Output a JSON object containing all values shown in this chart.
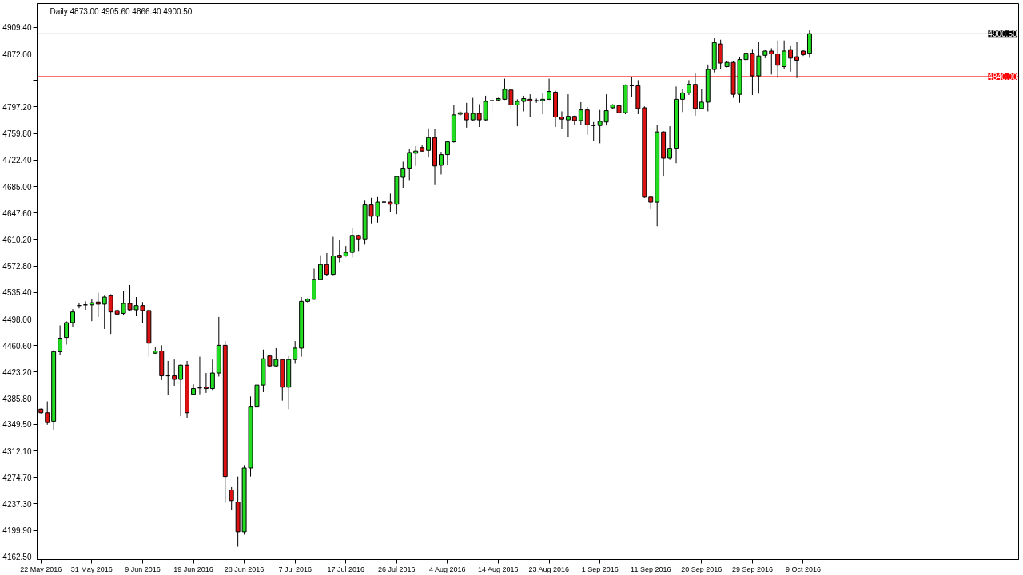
{
  "chart_data": {
    "type": "candlestick",
    "title": "Daily 4873.00 4905.60 4866.40 4900.50",
    "categories": [
      "22 May 2016",
      null,
      null,
      null,
      null,
      null,
      null,
      null,
      "31 May 2016",
      null,
      null,
      null,
      null,
      null,
      null,
      null,
      "9 Jun 2016",
      null,
      null,
      null,
      null,
      null,
      null,
      null,
      "19 Jun 2016",
      null,
      null,
      null,
      null,
      null,
      null,
      null,
      "28 Jun 2016",
      null,
      null,
      null,
      null,
      null,
      null,
      null,
      "7 Jul 2016",
      null,
      null,
      null,
      null,
      null,
      null,
      null,
      "17 Jul 2016",
      null,
      null,
      null,
      null,
      null,
      null,
      null,
      "26 Jul 2016",
      null,
      null,
      null,
      null,
      null,
      null,
      null,
      "4 Aug 2016",
      null,
      null,
      null,
      null,
      null,
      null,
      null,
      "14 Aug 2016",
      null,
      null,
      null,
      null,
      null,
      null,
      null,
      "23 Aug 2016",
      null,
      null,
      null,
      null,
      null,
      null,
      null,
      "1 Sep 2016",
      null,
      null,
      null,
      null,
      null,
      null,
      null,
      "11 Sep 2016",
      null,
      null,
      null,
      null,
      null,
      null,
      null,
      "20 Sep 2016",
      null,
      null,
      null,
      null,
      null,
      null,
      null,
      "29 Sep 2016",
      null,
      null,
      null,
      null,
      null,
      null,
      null,
      "9 Oct 2016",
      null
    ],
    "ohlc": [
      [
        4371,
        4372,
        4365,
        4366
      ],
      [
        4366,
        4382,
        4349,
        4352
      ],
      [
        4354,
        4454,
        4342,
        4452
      ],
      [
        4452,
        4489,
        4447,
        4471
      ],
      [
        4472,
        4495,
        4462,
        4493
      ],
      [
        4493,
        4512,
        4487,
        4508
      ],
      [
        4517,
        4520,
        4513,
        4517
      ],
      [
        4518,
        4523,
        4511,
        4518
      ],
      [
        4518,
        4526,
        4495,
        4521
      ],
      [
        4522,
        4535,
        4501,
        4519
      ],
      [
        4519,
        4531,
        4484,
        4529
      ],
      [
        4531,
        4533,
        4477,
        4508
      ],
      [
        4510,
        4512,
        4503,
        4505
      ],
      [
        4506,
        4537,
        4504,
        4520
      ],
      [
        4520,
        4546,
        4510,
        4511
      ],
      [
        4511,
        4529,
        4502,
        4517
      ],
      [
        4517,
        4522,
        4492,
        4510
      ],
      [
        4510,
        4512,
        4445,
        4464
      ],
      [
        4450,
        4458,
        4449,
        4453
      ],
      [
        4453,
        4461,
        4412,
        4418
      ],
      [
        4418,
        4439,
        4391,
        4418
      ],
      [
        4418,
        4441,
        4404,
        4413
      ],
      [
        4413,
        4434,
        4361,
        4433
      ],
      [
        4433,
        4439,
        4359,
        4366
      ],
      [
        4392,
        4406,
        4391,
        4400
      ],
      [
        4401,
        4445,
        4392,
        4401
      ],
      [
        4402,
        4422,
        4394,
        4400
      ],
      [
        4400,
        4441,
        4398,
        4422
      ],
      [
        4422,
        4501,
        4417,
        4461
      ],
      [
        4461,
        4467,
        4239,
        4276
      ],
      [
        4257,
        4261,
        4229,
        4242
      ],
      [
        4240,
        4276,
        4177,
        4198
      ],
      [
        4198,
        4292,
        4194,
        4288
      ],
      [
        4288,
        4389,
        4276,
        4374
      ],
      [
        4374,
        4418,
        4347,
        4405
      ],
      [
        4405,
        4455,
        4395,
        4442
      ],
      [
        4446,
        4448,
        4431,
        4432
      ],
      [
        4432,
        4457,
        4431,
        4441
      ],
      [
        4441,
        4442,
        4383,
        4402
      ],
      [
        4402,
        4446,
        4371,
        4441
      ],
      [
        4441,
        4467,
        4435,
        4457
      ],
      [
        4457,
        4529,
        4445,
        4523
      ],
      [
        4523,
        4528,
        4521,
        4526
      ],
      [
        4526,
        4569,
        4525,
        4554
      ],
      [
        4554,
        4588,
        4553,
        4575
      ],
      [
        4575,
        4591,
        4559,
        4561
      ],
      [
        4561,
        4614,
        4560,
        4587
      ],
      [
        4588,
        4609,
        4578,
        4585
      ],
      [
        4587,
        4601,
        4586,
        4592
      ],
      [
        4592,
        4627,
        4585,
        4616
      ],
      [
        4616,
        4617,
        4594,
        4611
      ],
      [
        4611,
        4665,
        4603,
        4659
      ],
      [
        4659,
        4669,
        4633,
        4643
      ],
      [
        4643,
        4670,
        4634,
        4663
      ],
      [
        4663,
        4666,
        4661,
        4663
      ],
      [
        4663,
        4675,
        4649,
        4660
      ],
      [
        4660,
        4700,
        4646,
        4699
      ],
      [
        4698,
        4720,
        4683,
        4711
      ],
      [
        4711,
        4738,
        4693,
        4733
      ],
      [
        4732,
        4742,
        4714,
        4735
      ],
      [
        4740,
        4743,
        4734,
        4735
      ],
      [
        4736,
        4767,
        4726,
        4754
      ],
      [
        4754,
        4766,
        4687,
        4714
      ],
      [
        4715,
        4734,
        4702,
        4730
      ],
      [
        4730,
        4749,
        4716,
        4748
      ],
      [
        4748,
        4800,
        4747,
        4786
      ],
      [
        4787,
        4791,
        4785,
        4789
      ],
      [
        4789,
        4803,
        4768,
        4779
      ],
      [
        4779,
        4810,
        4778,
        4788
      ],
      [
        4788,
        4801,
        4769,
        4779
      ],
      [
        4779,
        4813,
        4778,
        4805
      ],
      [
        4806,
        4809,
        4788,
        4806
      ],
      [
        4807,
        4810,
        4806,
        4809
      ],
      [
        4808,
        4837,
        4807,
        4822
      ],
      [
        4821,
        4823,
        4794,
        4800
      ],
      [
        4800,
        4808,
        4770,
        4805
      ],
      [
        4805,
        4813,
        4791,
        4809
      ],
      [
        4808,
        4815,
        4783,
        4806
      ],
      [
        4806,
        4809,
        4803,
        4806
      ],
      [
        4806,
        4817,
        4787,
        4808
      ],
      [
        4808,
        4837,
        4807,
        4819
      ],
      [
        4818,
        4820,
        4769,
        4783
      ],
      [
        4783,
        4791,
        4766,
        4780
      ],
      [
        4779,
        4815,
        4755,
        4784
      ],
      [
        4784,
        4785,
        4772,
        4778
      ],
      [
        4778,
        4804,
        4772,
        4793
      ],
      [
        4793,
        4797,
        4758,
        4772
      ],
      [
        4771,
        4776,
        4749,
        4771
      ],
      [
        4771,
        4793,
        4746,
        4777
      ],
      [
        4776,
        4815,
        4771,
        4792
      ],
      [
        4796,
        4801,
        4795,
        4800
      ],
      [
        4799,
        4804,
        4779,
        4789
      ],
      [
        4789,
        4829,
        4787,
        4828
      ],
      [
        4827,
        4839,
        4811,
        4827
      ],
      [
        4827,
        4835,
        4787,
        4795
      ],
      [
        4796,
        4798,
        4669,
        4670
      ],
      [
        4670,
        4672,
        4653,
        4663
      ],
      [
        4663,
        4772,
        4629,
        4762
      ],
      [
        4762,
        4763,
        4699,
        4725
      ],
      [
        4725,
        4770,
        4723,
        4739
      ],
      [
        4739,
        4826,
        4718,
        4808
      ],
      [
        4808,
        4822,
        4790,
        4817
      ],
      [
        4817,
        4835,
        4814,
        4829
      ],
      [
        4829,
        4845,
        4785,
        4795
      ],
      [
        4795,
        4823,
        4794,
        4804
      ],
      [
        4804,
        4857,
        4791,
        4850
      ],
      [
        4850,
        4894,
        4846,
        4888
      ],
      [
        4886,
        4892,
        4851,
        4859
      ],
      [
        4854,
        4862,
        4853,
        4860
      ],
      [
        4860,
        4862,
        4810,
        4815
      ],
      [
        4815,
        4868,
        4803,
        4864
      ],
      [
        4864,
        4877,
        4847,
        4873
      ],
      [
        4873,
        4879,
        4814,
        4841
      ],
      [
        4841,
        4889,
        4816,
        4869
      ],
      [
        4870,
        4878,
        4866,
        4876
      ],
      [
        4876,
        4880,
        4843,
        4872
      ],
      [
        4872,
        4891,
        4838,
        4856
      ],
      [
        4854,
        4891,
        4850,
        4876
      ],
      [
        4878,
        4884,
        4847,
        4866
      ],
      [
        4868,
        4889,
        4838,
        4863
      ],
      [
        4876,
        4878,
        4869,
        4871
      ],
      [
        4873,
        4905.6,
        4866.4,
        4900.5
      ]
    ],
    "colors": [
      "#dd1111",
      "#dd1111",
      "#22dd22",
      "#22dd22",
      "#22dd22",
      "#22dd22",
      "#000000",
      "#000000",
      "#22dd22",
      "#dd1111",
      "#22dd22",
      "#dd1111",
      "#dd1111",
      "#22dd22",
      "#dd1111",
      "#22dd22",
      "#dd1111",
      "#dd1111",
      "#22dd22",
      "#dd1111",
      "#000000",
      "#dd1111",
      "#22dd22",
      "#dd1111",
      "#22dd22",
      "#000000",
      "#dd1111",
      "#22dd22",
      "#22dd22",
      "#dd1111",
      "#dd1111",
      "#dd1111",
      "#22dd22",
      "#22dd22",
      "#22dd22",
      "#22dd22",
      "#dd1111",
      "#22dd22",
      "#dd1111",
      "#22dd22",
      "#22dd22",
      "#22dd22",
      "#22dd22",
      "#22dd22",
      "#22dd22",
      "#dd1111",
      "#22dd22",
      "#dd1111",
      "#22dd22",
      "#22dd22",
      "#dd1111",
      "#22dd22",
      "#dd1111",
      "#22dd22",
      "#000000",
      "#dd1111",
      "#22dd22",
      "#22dd22",
      "#22dd22",
      "#22dd22",
      "#dd1111",
      "#22dd22",
      "#dd1111",
      "#22dd22",
      "#22dd22",
      "#22dd22",
      "#22dd22",
      "#dd1111",
      "#22dd22",
      "#dd1111",
      "#22dd22",
      "#000000",
      "#22dd22",
      "#22dd22",
      "#dd1111",
      "#22dd22",
      "#22dd22",
      "#dd1111",
      "#000000",
      "#22dd22",
      "#22dd22",
      "#dd1111",
      "#dd1111",
      "#22dd22",
      "#dd1111",
      "#22dd22",
      "#dd1111",
      "#000000",
      "#22dd22",
      "#22dd22",
      "#22dd22",
      "#dd1111",
      "#22dd22",
      "#000000",
      "#dd1111",
      "#dd1111",
      "#dd1111",
      "#22dd22",
      "#dd1111",
      "#22dd22",
      "#22dd22",
      "#22dd22",
      "#22dd22",
      "#dd1111",
      "#22dd22",
      "#22dd22",
      "#22dd22",
      "#dd1111",
      "#22dd22",
      "#dd1111",
      "#22dd22",
      "#22dd22",
      "#dd1111",
      "#22dd22",
      "#22dd22",
      "#dd1111",
      "#dd1111",
      "#22dd22",
      "#dd1111",
      "#dd1111",
      "#dd1111",
      "#22dd22"
    ],
    "ylim": [
      4159,
      4943
    ],
    "yticks": [
      {
        "value": 4909.4,
        "label": "4909.40"
      },
      {
        "value": 4872,
        "label": "4872.00"
      },
      {
        "value": 4834.6,
        "label": null
      },
      {
        "value": 4797.2,
        "label": "4797.20"
      },
      {
        "value": 4759.8,
        "label": "4759.80"
      },
      {
        "value": 4722.4,
        "label": "4722.40"
      },
      {
        "value": 4685,
        "label": "4685.00"
      },
      {
        "value": 4647.6,
        "label": "4647.60"
      },
      {
        "value": 4610.2,
        "label": "4610.20"
      },
      {
        "value": 4572.8,
        "label": "4572.80"
      },
      {
        "value": 4535.4,
        "label": "4535.40"
      },
      {
        "value": 4498,
        "label": "4498.00"
      },
      {
        "value": 4460.6,
        "label": "4460.60"
      },
      {
        "value": 4423.2,
        "label": "4423.20"
      },
      {
        "value": 4385.8,
        "label": "4385.80"
      },
      {
        "value": 4349.5,
        "label": "4349.50"
      },
      {
        "value": 4312.1,
        "label": "4312.10"
      },
      {
        "value": 4274.7,
        "label": "4274.70"
      },
      {
        "value": 4237.3,
        "label": "4237.30"
      },
      {
        "value": 4199.9,
        "label": "4199.90"
      },
      {
        "value": 4162.5,
        "label": "4162.50"
      }
    ],
    "ref_lines": [
      {
        "axis": "y",
        "value": 4900.5,
        "label": "4900.50",
        "color": "#c0c0c0"
      },
      {
        "axis": "y",
        "value": 4840,
        "label": "4840.00",
        "color": "#ff0000"
      }
    ]
  }
}
